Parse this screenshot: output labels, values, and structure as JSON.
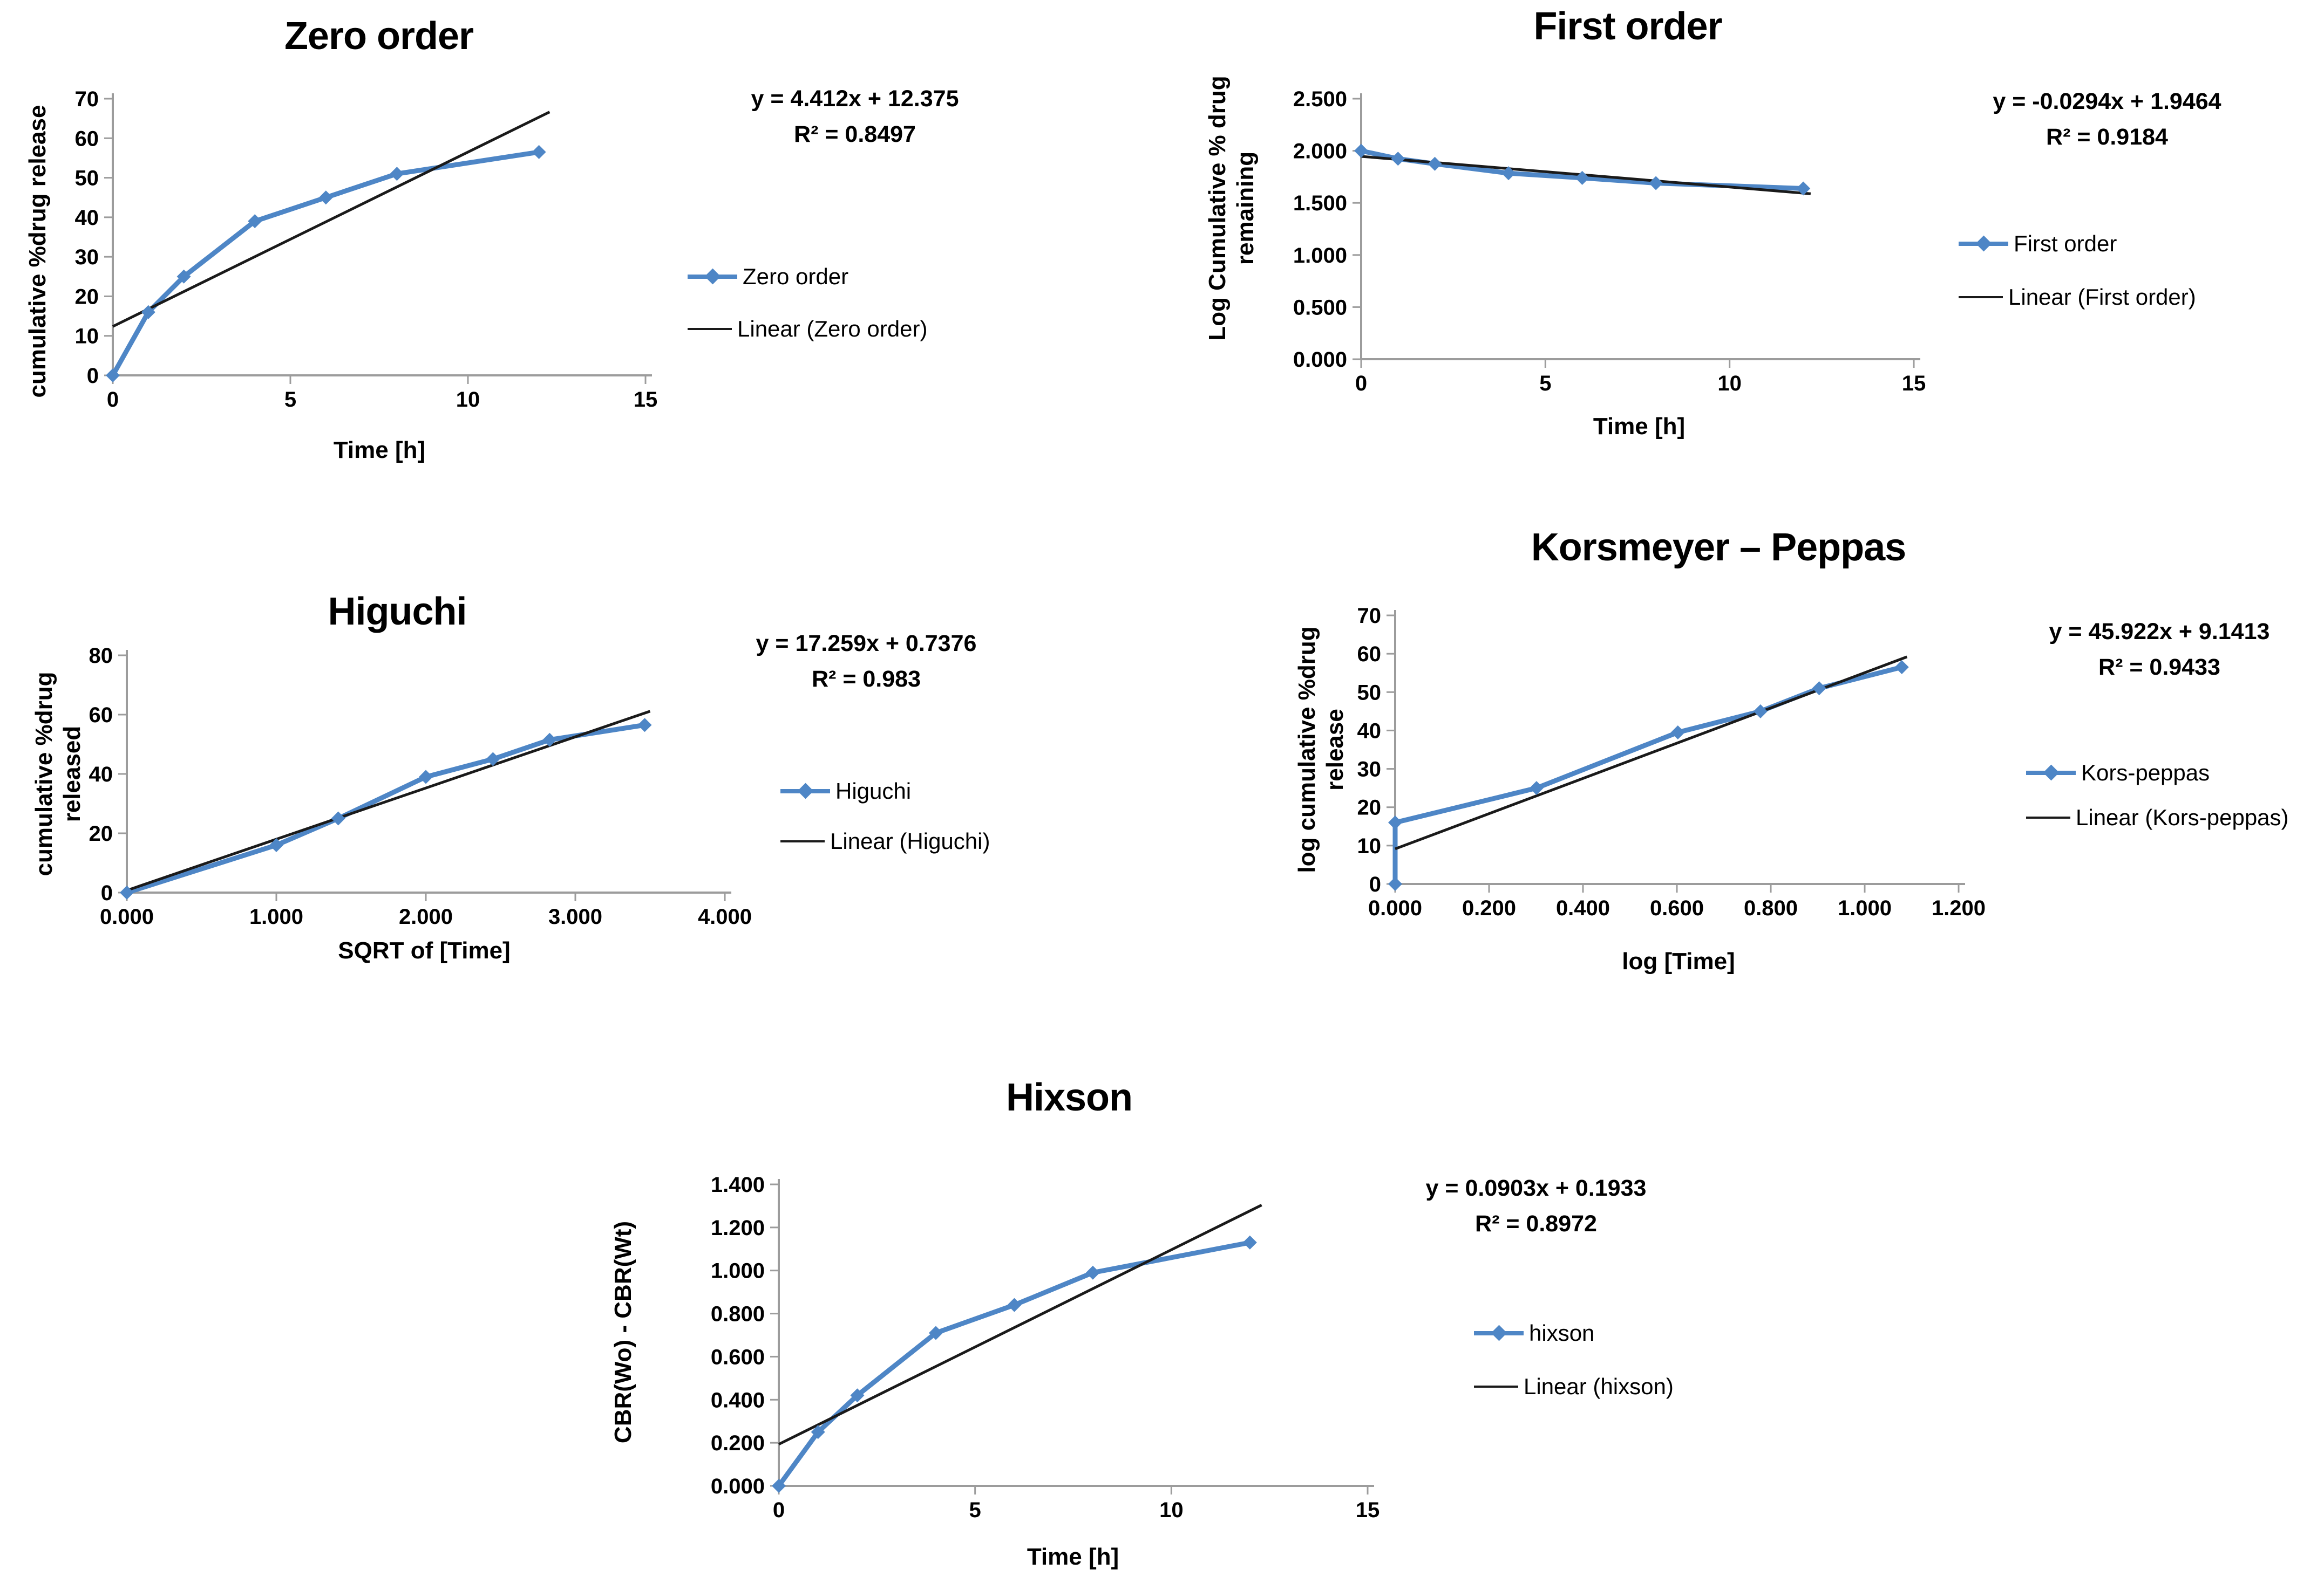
{
  "colors": {
    "series": "#4e86c6",
    "trendline": "#1a1a1a",
    "axis": "#9c9c9c",
    "text": "#000000",
    "background": "#ffffff"
  },
  "chart_data": [
    {
      "type": "line",
      "title": "Zero order",
      "xlabel": "Time [h]",
      "ylabel": "cumulative %drug release",
      "ylabel_lines": [
        "cumulative %drug release"
      ],
      "xlim": [
        0,
        15
      ],
      "ylim": [
        0,
        70
      ],
      "xticks": [
        0,
        5,
        10,
        15
      ],
      "xtick_labels": [
        "0",
        "5",
        "10",
        "15"
      ],
      "yticks": [
        0,
        10,
        20,
        30,
        40,
        50,
        60,
        70
      ],
      "ytick_labels": [
        "0",
        "10",
        "20",
        "30",
        "40",
        "50",
        "60",
        "70"
      ],
      "series": [
        {
          "name": "Zero order",
          "x": [
            0,
            1,
            2,
            4,
            6,
            8,
            12
          ],
          "y": [
            0,
            16,
            25,
            39,
            45,
            51,
            56.5
          ]
        }
      ],
      "trendline": {
        "name": "Linear (Zero order)",
        "slope": 4.412,
        "intercept": 12.375,
        "x_start": 0,
        "x_end": 12.3
      },
      "equation": "y = 4.412x + 12.375",
      "r_squared": "R² = 0.8497",
      "legend": [
        "Zero order",
        "Linear (Zero order)"
      ],
      "legend_position": "right",
      "grid": false
    },
    {
      "type": "line",
      "title": "First order",
      "xlabel": "Time [h]",
      "ylabel": "Log Cumulative % drug remaining",
      "ylabel_lines": [
        "Log Cumulative % drug",
        "remaining"
      ],
      "xlim": [
        0,
        15
      ],
      "ylim": [
        0,
        2.5
      ],
      "xticks": [
        0,
        5,
        10,
        15
      ],
      "xtick_labels": [
        "0",
        "5",
        "10",
        "15"
      ],
      "yticks": [
        0,
        0.5,
        1,
        1.5,
        2,
        2.5
      ],
      "ytick_labels": [
        "0.000",
        "0.500",
        "1.000",
        "1.500",
        "2.000",
        "2.500"
      ],
      "series": [
        {
          "name": "First order",
          "x": [
            0,
            1,
            2,
            4,
            6,
            8,
            12
          ],
          "y": [
            2.0,
            1.924,
            1.875,
            1.785,
            1.74,
            1.69,
            1.638
          ]
        }
      ],
      "trendline": {
        "name": "Linear (First order)",
        "slope": -0.0294,
        "intercept": 1.9464,
        "x_start": 0,
        "x_end": 12.2
      },
      "equation": "y = -0.0294x + 1.9464",
      "r_squared": "R² = 0.9184",
      "legend": [
        "First order",
        "Linear (First order)"
      ],
      "legend_position": "right",
      "grid": false
    },
    {
      "type": "line",
      "title": "Higuchi",
      "xlabel": "SQRT of [Time]",
      "ylabel": "cumulative %drug released",
      "ylabel_lines": [
        "cumulative %drug released"
      ],
      "xlim": [
        0,
        4
      ],
      "ylim": [
        0,
        80
      ],
      "xticks": [
        0,
        1,
        2,
        3,
        4
      ],
      "xtick_labels": [
        "0.000",
        "1.000",
        "2.000",
        "3.000",
        "4.000"
      ],
      "yticks": [
        0,
        20,
        40,
        60,
        80
      ],
      "ytick_labels": [
        "0",
        "20",
        "40",
        "60",
        "80"
      ],
      "series": [
        {
          "name": "Higuchi",
          "x": [
            0,
            1,
            1.414,
            2,
            2.449,
            2.828,
            3.464
          ],
          "y": [
            0,
            16,
            25,
            39,
            45,
            51.5,
            56.5
          ]
        }
      ],
      "trendline": {
        "name": "Linear (Higuchi)",
        "slope": 17.259,
        "intercept": 0.7376,
        "x_start": 0,
        "x_end": 3.5
      },
      "equation": "y = 17.259x + 0.7376",
      "r_squared": "R² = 0.983",
      "legend": [
        "Higuchi",
        "Linear (Higuchi)"
      ],
      "legend_position": "right",
      "grid": false
    },
    {
      "type": "line",
      "title": "Korsmeyer – Peppas",
      "xlabel": "log [Time]",
      "ylabel": "log cumulative %drug release",
      "ylabel_lines": [
        "log cumulative %drug release"
      ],
      "xlim": [
        0,
        1.2
      ],
      "ylim": [
        0,
        70
      ],
      "xticks": [
        0,
        0.2,
        0.4,
        0.6,
        0.8,
        1.0,
        1.2
      ],
      "xtick_labels": [
        "0.000",
        "0.200",
        "0.400",
        "0.600",
        "0.800",
        "1.000",
        "1.200"
      ],
      "yticks": [
        0,
        10,
        20,
        30,
        40,
        50,
        60,
        70
      ],
      "ytick_labels": [
        "0",
        "10",
        "20",
        "30",
        "40",
        "50",
        "60",
        "70"
      ],
      "series": [
        {
          "name": "Kors-peppas",
          "x": [
            0,
            0,
            0.301,
            0.602,
            0.778,
            0.903,
            1.079
          ],
          "y": [
            0,
            16,
            25,
            39.5,
            45,
            51,
            56.5
          ]
        }
      ],
      "trendline": {
        "name": "Linear (Kors-peppas)",
        "slope": 45.922,
        "intercept": 9.1413,
        "x_start": 0,
        "x_end": 1.09
      },
      "equation": "y = 45.922x + 9.1413",
      "r_squared": "R² = 0.9433",
      "legend": [
        "Kors-peppas",
        "Linear (Kors-peppas)"
      ],
      "legend_position": "right",
      "grid": false
    },
    {
      "type": "line",
      "title": "Hixson",
      "xlabel": "Time [h]",
      "ylabel": "CBR(Wo) - CBR(Wt)",
      "ylabel_lines": [
        "CBR(Wo) - CBR(Wt)"
      ],
      "xlim": [
        0,
        15
      ],
      "ylim": [
        0,
        1.4
      ],
      "xticks": [
        0,
        5,
        10,
        15
      ],
      "xtick_labels": [
        "0",
        "5",
        "10",
        "15"
      ],
      "yticks": [
        0,
        0.2,
        0.4,
        0.6,
        0.8,
        1.0,
        1.2,
        1.4
      ],
      "ytick_labels": [
        "0.000",
        "0.200",
        "0.400",
        "0.600",
        "0.800",
        "1.000",
        "1.200",
        "1.400"
      ],
      "series": [
        {
          "name": "hixson",
          "x": [
            0,
            1,
            2,
            4,
            6,
            8,
            12
          ],
          "y": [
            0,
            0.25,
            0.42,
            0.71,
            0.84,
            0.99,
            1.13
          ]
        }
      ],
      "trendline": {
        "name": "Linear (hixson)",
        "slope": 0.0903,
        "intercept": 0.1933,
        "x_start": 0,
        "x_end": 12.3
      },
      "equation": "y = 0.0903x + 0.1933",
      "r_squared": "R² = 0.8972",
      "legend": [
        "hixson",
        "Linear (hixson)"
      ],
      "legend_position": "right",
      "grid": false
    }
  ]
}
